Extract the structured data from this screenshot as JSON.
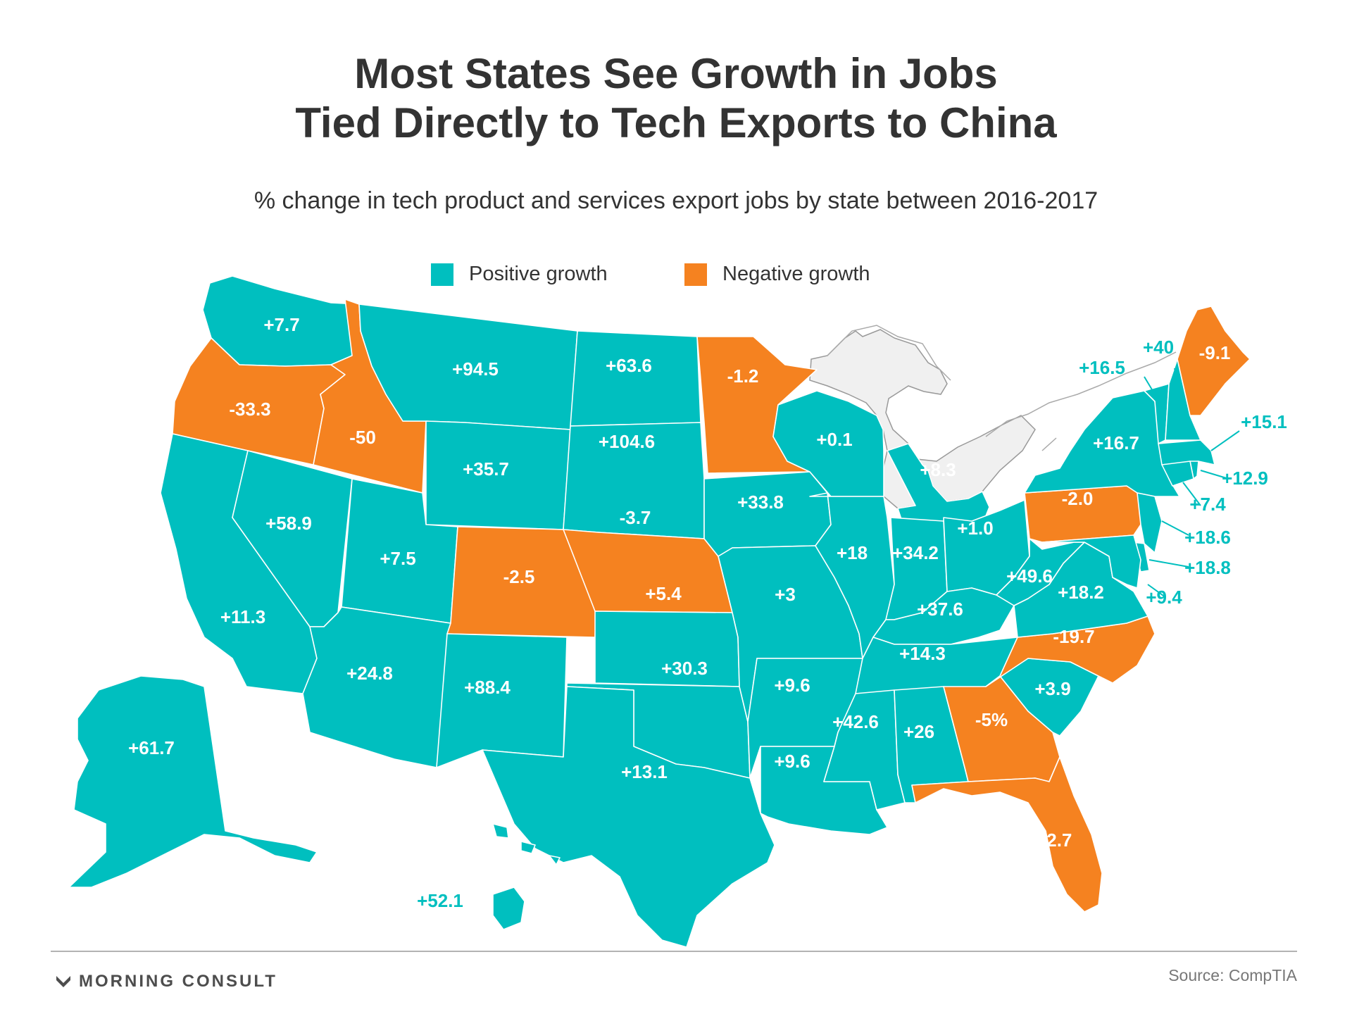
{
  "title": {
    "line1": "Most States See Growth in Jobs",
    "line2": "Tied Directly to Tech Exports to China"
  },
  "subtitle": "% change in tech product and services export jobs by state between 2016-2017",
  "legend": {
    "positive_label": "Positive growth",
    "negative_label": "Negative growth"
  },
  "colors": {
    "positive": "#00bfbf",
    "negative": "#f58220",
    "neighbor_land": "#f0f0f0",
    "text": "#333333"
  },
  "states": {
    "WA": {
      "value": 7.7,
      "label": "+7.7"
    },
    "OR": {
      "value": -33.3,
      "label": "-33.3"
    },
    "CA": {
      "value": 11.3,
      "label": "+11.3"
    },
    "NV": {
      "value": 58.9,
      "label": "+58.9"
    },
    "ID": {
      "value": -50,
      "label": "-50"
    },
    "MT": {
      "value": 94.5,
      "label": "+94.5"
    },
    "WY": {
      "value": 35.7,
      "label": "+35.7"
    },
    "UT": {
      "value": 7.5,
      "label": "+7.5"
    },
    "AZ": {
      "value": 24.8,
      "label": "+24.8"
    },
    "CO": {
      "value": -2.5,
      "label": "-2.5"
    },
    "NM": {
      "value": 88.4,
      "label": "+88.4"
    },
    "ND": {
      "value": 63.6,
      "label": "+63.6"
    },
    "SD": {
      "value": 104.6,
      "label": "+104.6"
    },
    "NE": {
      "value": -3.7,
      "label": "-3.7"
    },
    "KS": {
      "value": 5.4,
      "label": "+5.4"
    },
    "OK": {
      "value": 30.3,
      "label": "+30.3"
    },
    "TX": {
      "value": 13.1,
      "label": "+13.1"
    },
    "MN": {
      "value": -1.2,
      "label": "-1.2"
    },
    "IA": {
      "value": 33.8,
      "label": "+33.8"
    },
    "MO": {
      "value": 3,
      "label": "+3"
    },
    "AR": {
      "value": 9.6,
      "label": "+9.6"
    },
    "LA": {
      "value": 9.6,
      "label": "+9.6"
    },
    "WI": {
      "value": 0.1,
      "label": "+0.1"
    },
    "IL": {
      "value": 18,
      "label": "+18"
    },
    "MI": {
      "value": 8.3,
      "label": "+8.3"
    },
    "IN": {
      "value": 34.2,
      "label": "+34.2"
    },
    "OH": {
      "value": 1.0,
      "label": "+1.0"
    },
    "KY": {
      "value": 37.6,
      "label": "+37.6"
    },
    "TN": {
      "value": 14.3,
      "label": "+14.3"
    },
    "MS": {
      "value": 42.6,
      "label": "+42.6"
    },
    "AL": {
      "value": 26,
      "label": "+26"
    },
    "GA": {
      "value": -5,
      "label": "-5%"
    },
    "FL": {
      "value": -2.7,
      "label": "-2.7"
    },
    "SC": {
      "value": 3.9,
      "label": "+3.9"
    },
    "NC": {
      "value": -19.7,
      "label": "-19.7"
    },
    "VA": {
      "value": 18.2,
      "label": "+18.2"
    },
    "WV": {
      "value": 49.6,
      "label": "+49.6"
    },
    "PA": {
      "value": -2.0,
      "label": "-2.0"
    },
    "NY": {
      "value": 16.7,
      "label": "+16.7"
    },
    "VT": {
      "value": 16.5,
      "label": "+16.5"
    },
    "NH": {
      "value": 40,
      "label": "+40"
    },
    "ME": {
      "value": -9.1,
      "label": "-9.1"
    },
    "MA": {
      "value": 15.1,
      "label": "+15.1"
    },
    "RI": {
      "value": 12.9,
      "label": "+12.9"
    },
    "CT": {
      "value": 7.4,
      "label": "+7.4"
    },
    "NJ": {
      "value": 18.6,
      "label": "+18.6"
    },
    "DE": {
      "value": 18.8,
      "label": "+18.8"
    },
    "MD": {
      "value": 9.4,
      "label": "+9.4"
    },
    "AK": {
      "value": 61.7,
      "label": "+61.7"
    },
    "HI": {
      "value": 52.1,
      "label": "+52.1"
    }
  },
  "footer": {
    "brand": "MORNING CONSULT",
    "source": "Source: CompTIA"
  }
}
